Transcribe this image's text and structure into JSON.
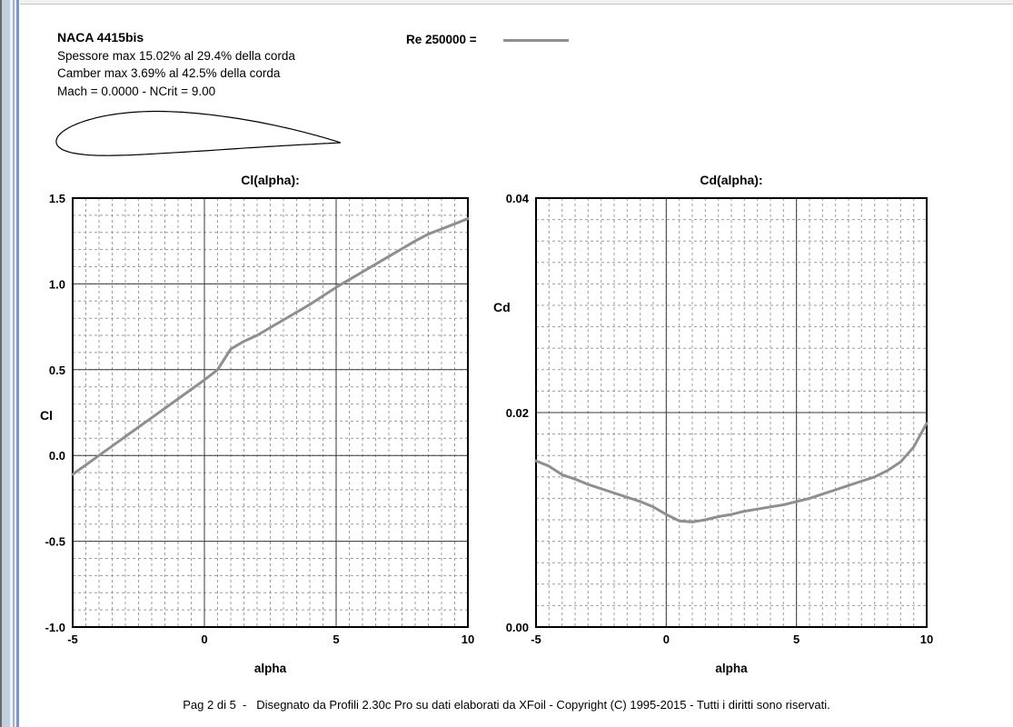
{
  "header": {
    "title": "NACA 4415bis",
    "line1": "Spessore max 15.02% al 29.4% della corda",
    "line2": "Camber max 3.69% al 42.5% della corda",
    "line3": "Mach = 0.0000 - NCrit = 9.00",
    "legend_label": "Re 250000 =",
    "legend_color": "#8f8f8f"
  },
  "airfoil": {
    "name": "NACA 4415bis",
    "camber": 0.0369,
    "camber_pos": 0.425,
    "thickness": 0.1502
  },
  "chart_data": [
    {
      "type": "line",
      "title": "Cl(alpha):",
      "xlabel": "alpha",
      "ylabel": "Cl",
      "xlim": [
        -5,
        10
      ],
      "ylim": [
        -1.0,
        1.5
      ],
      "x_ticks": [
        -5,
        0,
        5,
        10
      ],
      "x_tick_labels": [
        "-5",
        "0",
        "5",
        "10"
      ],
      "y_ticks": [
        -1.0,
        -0.5,
        0,
        0.5,
        1.0,
        1.5
      ],
      "y_tick_labels": [
        "-1.0",
        "-0.5",
        "0.0",
        "0.5",
        "1.0",
        "1.5"
      ],
      "x_minor": 0.5,
      "y_minor": 0.1,
      "grid": true,
      "legend_position": "none",
      "x": [
        -5,
        -4.5,
        -4,
        -3.5,
        -3,
        -2.5,
        -2,
        -1.5,
        -1,
        -0.5,
        0,
        0.5,
        1,
        1.5,
        2,
        2.5,
        3,
        3.5,
        4,
        4.5,
        5,
        5.5,
        6,
        6.5,
        7,
        7.5,
        8,
        8.5,
        9,
        9.5,
        10
      ],
      "series": [
        {
          "name": "Re 250000",
          "color": "#8f8f8f",
          "values": [
            -0.11,
            -0.055,
            0,
            0.055,
            0.11,
            0.165,
            0.22,
            0.275,
            0.33,
            0.385,
            0.44,
            0.5,
            0.62,
            0.665,
            0.7,
            0.745,
            0.79,
            0.835,
            0.88,
            0.93,
            0.98,
            1.025,
            1.07,
            1.115,
            1.16,
            1.205,
            1.25,
            1.29,
            1.32,
            1.35,
            1.38
          ]
        }
      ]
    },
    {
      "type": "line",
      "title": "Cd(alpha):",
      "xlabel": "alpha",
      "ylabel": "Cd",
      "xlim": [
        -5,
        10
      ],
      "ylim": [
        0,
        0.04
      ],
      "x_ticks": [
        -5,
        0,
        5,
        10
      ],
      "x_tick_labels": [
        "-5",
        "0",
        "5",
        "10"
      ],
      "y_ticks": [
        0,
        0.02,
        0.04
      ],
      "y_tick_labels": [
        "0.00",
        "0.02",
        "0.04"
      ],
      "x_minor": 0.5,
      "y_minor": 0.002,
      "grid": true,
      "legend_position": "none",
      "x": [
        -5,
        -4.5,
        -4,
        -3.5,
        -3,
        -2.5,
        -2,
        -1.5,
        -1,
        -0.5,
        0,
        0.5,
        1,
        1.5,
        2,
        2.5,
        3,
        3.5,
        4,
        4.5,
        5,
        5.5,
        6,
        6.5,
        7,
        7.5,
        8,
        8.5,
        9,
        9.5,
        10
      ],
      "series": [
        {
          "name": "Re 250000",
          "color": "#8f8f8f",
          "values": [
            0.0155,
            0.015,
            0.0142,
            0.0138,
            0.0133,
            0.0129,
            0.0125,
            0.0121,
            0.0117,
            0.0112,
            0.0105,
            0.0099,
            0.0098,
            0.01,
            0.0103,
            0.0105,
            0.0108,
            0.011,
            0.0112,
            0.0114,
            0.0117,
            0.012,
            0.0124,
            0.0128,
            0.0132,
            0.0136,
            0.014,
            0.0146,
            0.0154,
            0.0168,
            0.019
          ]
        }
      ]
    }
  ],
  "footer": {
    "text": "Pag 2 di 5  -   Disegnato da Profili 2.30c Pro su dati elaborati da XFoil - Copyright (C) 1995-2015 - Tutti i diritti sono riservati."
  }
}
